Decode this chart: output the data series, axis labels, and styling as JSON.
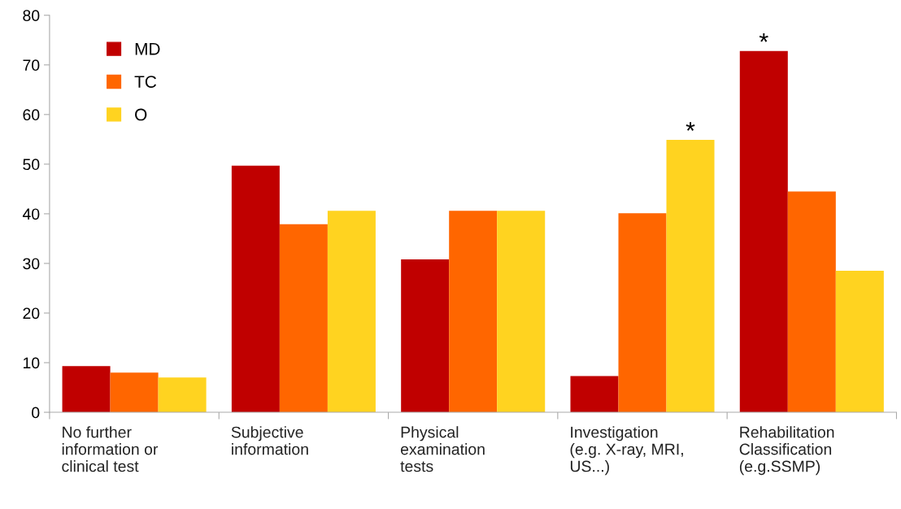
{
  "chart_data": {
    "type": "bar",
    "categories": [
      "No further\ninformation or\nclinical test",
      "Subjective\ninformation",
      "Physical\nexamination\ntests",
      "Investigation\n(e.g. X-ray, MRI,\nUS...)",
      "Rehabilitation\nClassification\n(e.g.SSMP)"
    ],
    "series": [
      {
        "name": "MD",
        "color": "#c00000",
        "values": [
          9.3,
          49.7,
          30.8,
          7.3,
          72.8
        ]
      },
      {
        "name": "TC",
        "color": "#ff6600",
        "values": [
          8.0,
          37.9,
          40.6,
          40.1,
          44.5
        ]
      },
      {
        "name": "O",
        "color": "#ffd320",
        "values": [
          7.0,
          40.6,
          40.6,
          54.9,
          28.5
        ]
      }
    ],
    "ylim": [
      0,
      80
    ],
    "yticks": [
      0,
      10,
      20,
      30,
      40,
      50,
      60,
      70,
      80
    ],
    "annotations": [
      "*",
      "*"
    ],
    "grid": false,
    "legend": "top left"
  }
}
